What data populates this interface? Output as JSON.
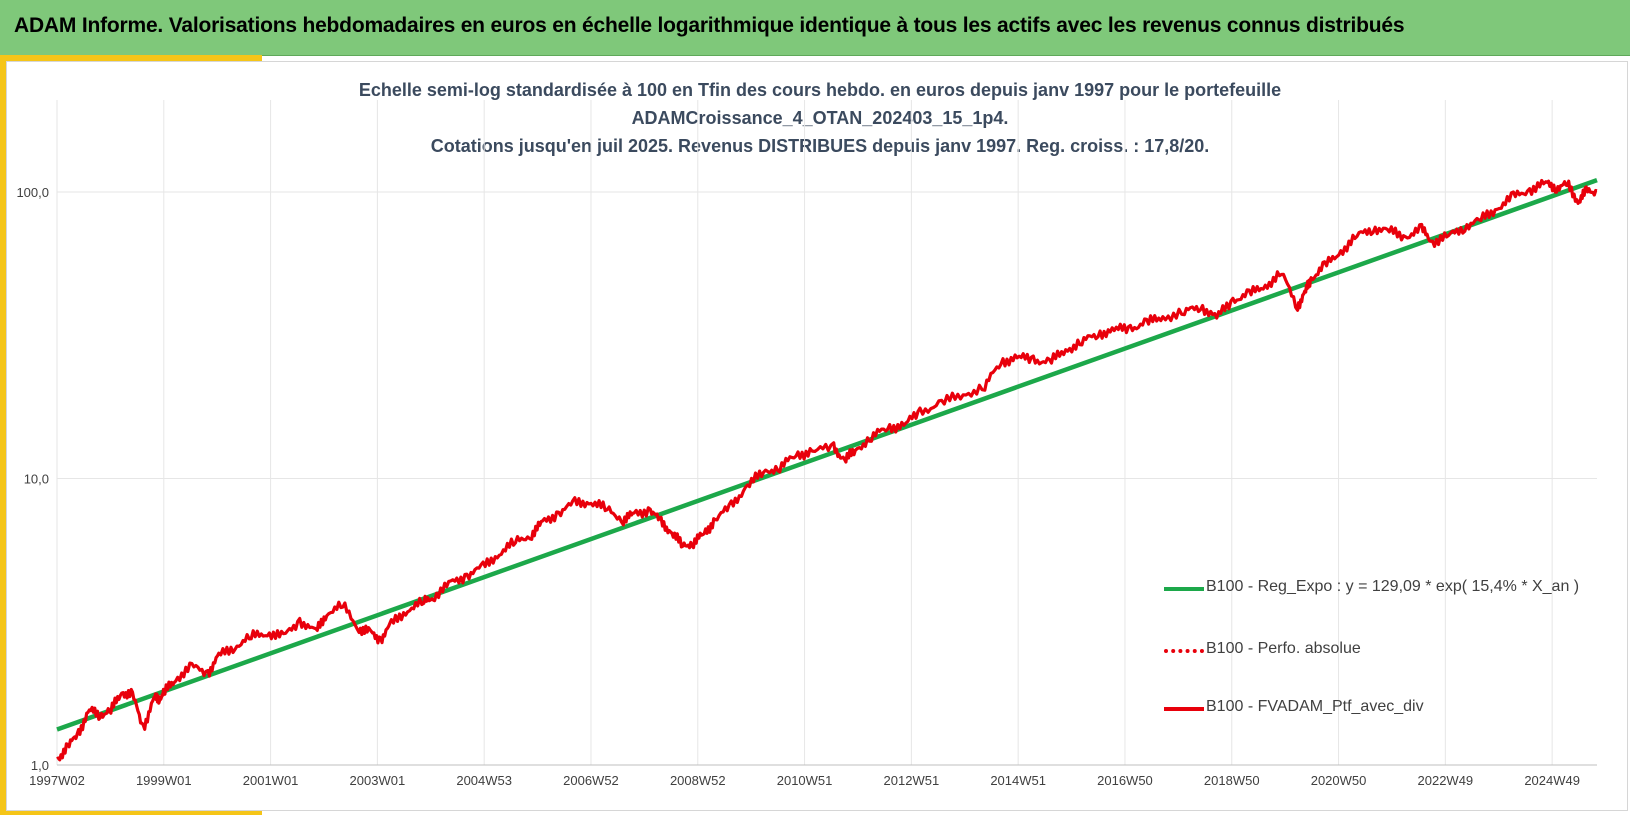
{
  "header": {
    "title": "ADAM Informe. Valorisations hebdomadaires en euros en échelle logarithmique identique à tous les actifs avec les revenus connus distribués"
  },
  "colors": {
    "header_bg": "#7fc87a",
    "accent": "#f5c518",
    "regression_line": "#1ca84a",
    "portfolio_line": "#e8000b",
    "grid": "#e6e6e6"
  },
  "chart_data": {
    "type": "line",
    "title_lines": [
      "Echelle semi-log standardisée  à 100 en Tfin des cours hebdo.  en euros depuis janv 1997 pour le portefeuille",
      "ADAMCroissance_4_OTAN_202403_15_1p4.",
      "Cotations jusqu'en juil 2025. Revenus DISTRIBUES depuis janv 1997. Reg. croiss. : 17,8/20."
    ],
    "y_scale": "log",
    "ylim": [
      1,
      130
    ],
    "y_ticks": [
      "1,0",
      "10,0",
      "100,0"
    ],
    "x_tick_labels": [
      "1997W02",
      "1999W01",
      "2001W01",
      "2003W01",
      "2004W53",
      "2006W52",
      "2008W52",
      "2010W51",
      "2012W51",
      "2014W51",
      "2016W50",
      "2018W50",
      "2020W50",
      "2022W49",
      "2024W49"
    ],
    "x_range_years": [
      1997.0,
      2025.55
    ],
    "grid": "vertical",
    "legend_position": "bottom-right",
    "series": [
      {
        "name": "B100 - Reg_Expo : y = 129,09 * exp( 15,4% *  X_an )",
        "style": "solid",
        "x": [
          1997.0,
          2025.55
        ],
        "y": [
          1.33,
          110
        ]
      },
      {
        "name": "B100 - Perfo. absolue",
        "style": "dotted",
        "x": [],
        "y": []
      },
      {
        "name": "B100 - FVADAM_Ptf_avec_div",
        "style": "solid",
        "x": [
          1997.0,
          1997.2,
          1997.4,
          1997.6,
          1997.8,
          1998.0,
          1998.2,
          1998.4,
          1998.6,
          1998.8,
          1998.9,
          1999.0,
          1999.2,
          1999.5,
          1999.8,
          2000.0,
          2000.3,
          2000.6,
          2000.9,
          2001.2,
          2001.5,
          2001.8,
          2002.0,
          2002.3,
          2002.6,
          2002.8,
          2003.0,
          2003.2,
          2003.5,
          2003.8,
          2004.0,
          2004.3,
          2004.6,
          2004.9,
          2005.2,
          2005.5,
          2005.8,
          2006.0,
          2006.3,
          2006.6,
          2006.9,
          2007.2,
          2007.5,
          2007.7,
          2008.0,
          2008.2,
          2008.4,
          2008.6,
          2008.8,
          2009.0,
          2009.2,
          2009.5,
          2009.8,
          2010.1,
          2010.4,
          2010.7,
          2011.0,
          2011.4,
          2011.6,
          2011.8,
          2012.1,
          2012.4,
          2012.7,
          2013.0,
          2013.4,
          2013.8,
          2014.2,
          2014.5,
          2014.8,
          2015.1,
          2015.4,
          2015.7,
          2016.0,
          2016.3,
          2016.6,
          2016.9,
          2017.2,
          2017.5,
          2017.9,
          2018.2,
          2018.5,
          2018.8,
          2019.1,
          2019.4,
          2019.7,
          2020.0,
          2020.15,
          2020.25,
          2020.5,
          2020.8,
          2021.1,
          2021.4,
          2021.7,
          2022.0,
          2022.3,
          2022.5,
          2022.8,
          2023.1,
          2023.4,
          2023.7,
          2024.0,
          2024.3,
          2024.6,
          2024.8,
          2025.0,
          2025.2,
          2025.35,
          2025.55
        ],
        "y": [
          1.05,
          1.15,
          1.3,
          1.55,
          1.5,
          1.55,
          1.8,
          1.75,
          1.35,
          1.7,
          1.72,
          1.8,
          2.0,
          2.2,
          2.1,
          2.4,
          2.6,
          2.8,
          2.9,
          2.8,
          3.2,
          2.9,
          3.4,
          3.6,
          3.0,
          2.9,
          2.75,
          3.1,
          3.5,
          3.7,
          3.9,
          4.3,
          4.6,
          4.9,
          5.5,
          6.0,
          6.4,
          7.0,
          7.6,
          8.2,
          8.3,
          7.8,
          7.2,
          7.5,
          7.8,
          7.0,
          6.5,
          5.8,
          6.0,
          6.4,
          7.2,
          8.0,
          9.5,
          10.5,
          11.0,
          12.0,
          12.5,
          12.8,
          11.6,
          12.5,
          14.0,
          15.0,
          15.4,
          17.0,
          18.5,
          19.5,
          21.0,
          25.5,
          26.5,
          26.0,
          25.5,
          28.0,
          30.0,
          32.0,
          33.0,
          33.5,
          35.0,
          36.5,
          38.0,
          40.0,
          36.5,
          42.0,
          44.0,
          47.0,
          52.0,
          40.0,
          45.0,
          50.0,
          55.0,
          62.0,
          70.0,
          75.0,
          73.0,
          70.0,
          74.0,
          67.0,
          70.0,
          76.0,
          80.0,
          88.0,
          96.0,
          102.0,
          107.0,
          104.0,
          106.0,
          93.0,
          100.0,
          101.0
        ]
      }
    ]
  }
}
